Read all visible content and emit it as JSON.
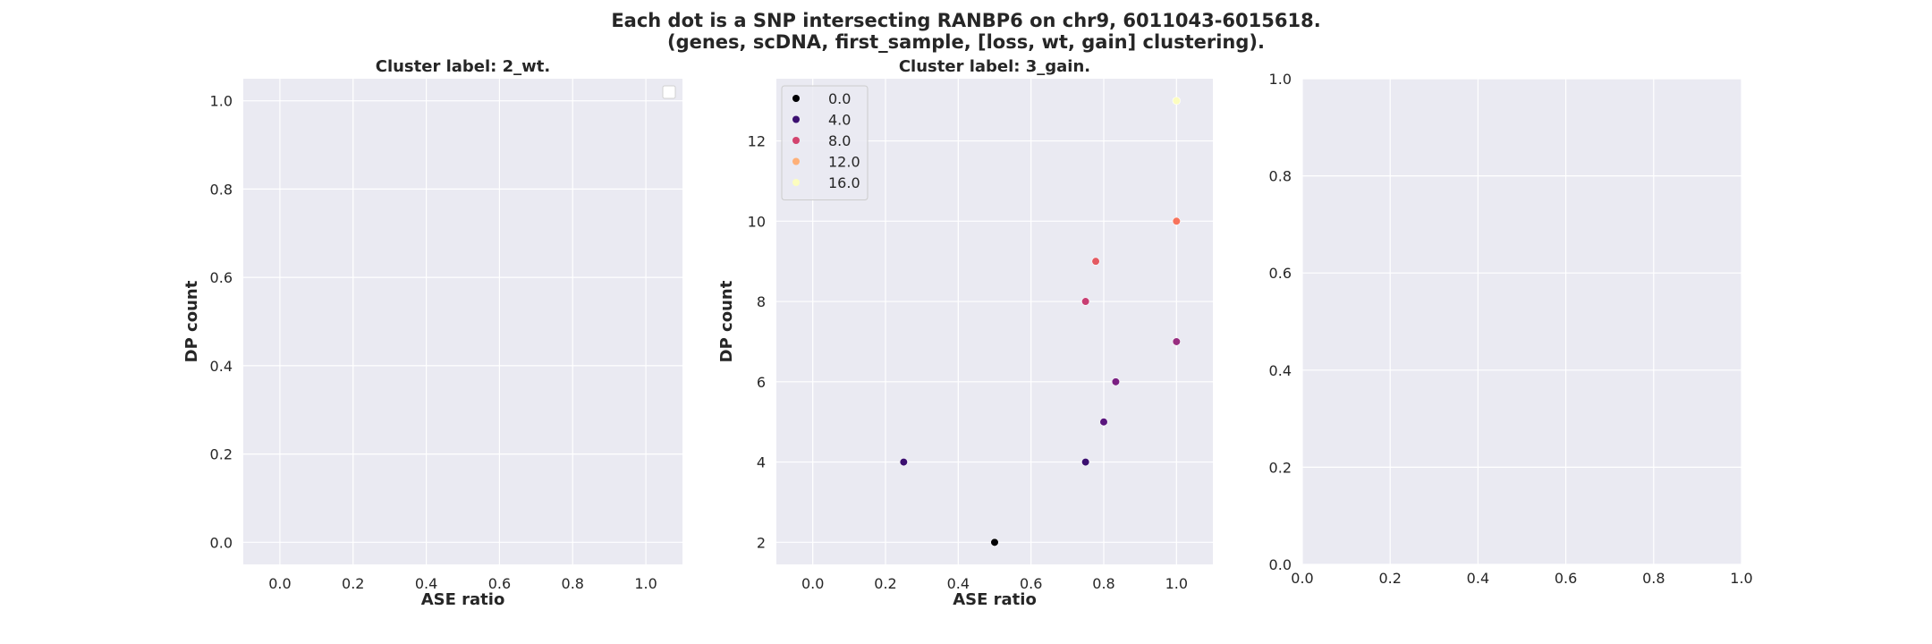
{
  "figure": {
    "title_line1": "Each dot is a SNP intersecting RANBP6 on chr9, 6011043-6015618.",
    "title_line2": "(genes, scDNA, first_sample, [loss, wt, gain] clustering).",
    "background": "#ffffff",
    "axes_facecolor": "#eaeaf2",
    "grid_color": "#ffffff"
  },
  "chart_data": [
    {
      "type": "scatter",
      "title": "Cluster label: 2_wt.",
      "xlabel": "ASE ratio",
      "ylabel": "DP count",
      "xlim": [
        -0.1,
        1.1
      ],
      "ylim": [
        -0.05,
        1.05
      ],
      "xticks": [
        "0.0",
        "0.2",
        "0.4",
        "0.6",
        "0.8",
        "1.0"
      ],
      "yticks": [
        "0.0",
        "0.2",
        "0.4",
        "0.6",
        "0.8",
        "1.0"
      ],
      "grid": true,
      "legend": "top-right (empty)",
      "points": []
    },
    {
      "type": "scatter",
      "title": "Cluster label: 3_gain.",
      "xlabel": "ASE ratio",
      "ylabel": "DP count",
      "xlim": [
        -0.1,
        1.1
      ],
      "ylim": [
        1.45,
        13.55
      ],
      "xticks": [
        "0.0",
        "0.2",
        "0.4",
        "0.6",
        "0.8",
        "1.0"
      ],
      "yticks": [
        "2",
        "4",
        "6",
        "8",
        "10",
        "12"
      ],
      "grid": true,
      "legend": "top-left",
      "legend_entries": [
        {
          "label": "0.0",
          "color": "#000004"
        },
        {
          "label": "4.0",
          "color": "#3b0f70"
        },
        {
          "label": "8.0",
          "color": "#d3436e"
        },
        {
          "label": "12.0",
          "color": "#feb078"
        },
        {
          "label": "16.0",
          "color": "#fcfdbf"
        }
      ],
      "points": [
        {
          "x": 0.5,
          "y": 2,
          "color": "#000004"
        },
        {
          "x": 0.25,
          "y": 4,
          "color": "#3b0f70"
        },
        {
          "x": 0.75,
          "y": 4,
          "color": "#3b0f70"
        },
        {
          "x": 0.8,
          "y": 5,
          "color": "#5a167e"
        },
        {
          "x": 0.833,
          "y": 6,
          "color": "#7a1f82"
        },
        {
          "x": 1.0,
          "y": 7,
          "color": "#982d80"
        },
        {
          "x": 0.75,
          "y": 8,
          "color": "#c83e73"
        },
        {
          "x": 0.778,
          "y": 9,
          "color": "#e45a62"
        },
        {
          "x": 1.0,
          "y": 10,
          "color": "#f7735c"
        },
        {
          "x": 1.0,
          "y": 13,
          "color": "#fcfdbf"
        }
      ]
    },
    {
      "type": "scatter",
      "title": "",
      "xlabel": "",
      "ylabel": "",
      "xlim": [
        0,
        1
      ],
      "ylim": [
        0,
        1
      ],
      "xticks": [
        "0.0",
        "0.2",
        "0.4",
        "0.6",
        "0.8",
        "1.0"
      ],
      "yticks": [
        "0.0",
        "0.2",
        "0.4",
        "0.6",
        "0.8",
        "1.0"
      ],
      "grid": true,
      "points": []
    }
  ]
}
